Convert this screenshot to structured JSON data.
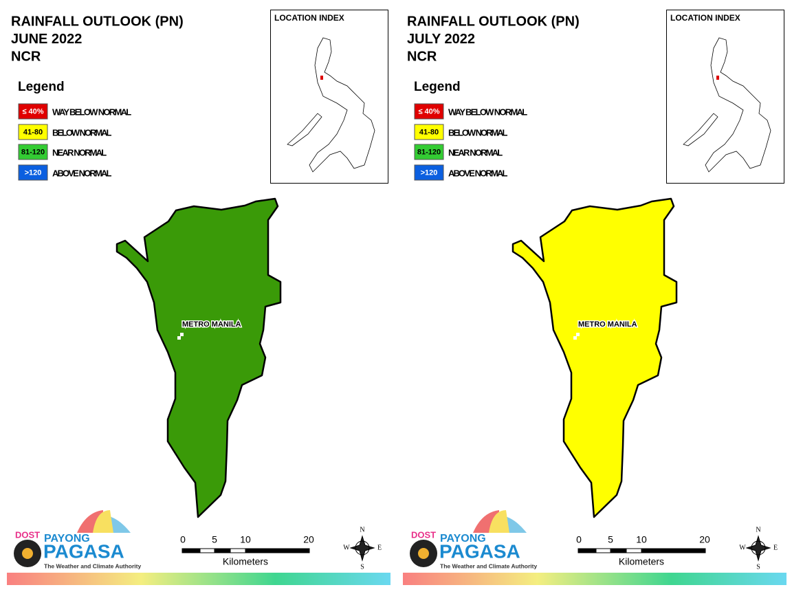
{
  "panels": [
    {
      "title_lines": [
        "RAINFALL OUTLOOK (PN)",
        "JUNE 2022",
        "NCR"
      ],
      "map_color": "#3a9a08",
      "legend_title": "Legend",
      "legend": [
        {
          "swatch": "≤ 40%",
          "label": "WAY BELOW NORMAL",
          "color": "#e00000",
          "text_color": "#ffffff"
        },
        {
          "swatch": "41-80",
          "label": "BELOW NORMAL",
          "color": "#ffff00",
          "text_color": "#000000"
        },
        {
          "swatch": "81-120",
          "label": "NEAR NORMAL",
          "color": "#33cc33",
          "text_color": "#000000"
        },
        {
          "swatch": ">120",
          "label": "ABOVE NORMAL",
          "color": "#0b5fe0",
          "text_color": "#ffffff"
        }
      ],
      "location_index": "LOCATION INDEX",
      "map_label": "METRO MANILA",
      "scale_ticks": [
        "0",
        "5",
        "10",
        "20"
      ],
      "scale_unit": "Kilometers",
      "compass": {
        "n": "N",
        "e": "E",
        "s": "S",
        "w": "W"
      },
      "logo": {
        "dost": "DOST",
        "payong": "PAYONG",
        "pagasa": "PAGASA",
        "tagline": "The Weather and Climate Authority"
      }
    },
    {
      "title_lines": [
        "RAINFALL OUTLOOK (PN)",
        "JULY 2022",
        "NCR"
      ],
      "map_color": "#ffff00",
      "legend_title": "Legend",
      "legend": [
        {
          "swatch": "≤ 40%",
          "label": "WAY BELOW NORMAL",
          "color": "#e00000",
          "text_color": "#ffffff"
        },
        {
          "swatch": "41-80",
          "label": "BELOW NORMAL",
          "color": "#ffff00",
          "text_color": "#000000"
        },
        {
          "swatch": "81-120",
          "label": "NEAR NORMAL",
          "color": "#33cc33",
          "text_color": "#000000"
        },
        {
          "swatch": ">120",
          "label": "ABOVE NORMAL",
          "color": "#0b5fe0",
          "text_color": "#ffffff"
        }
      ],
      "location_index": "LOCATION INDEX",
      "map_label": "METRO MANILA",
      "scale_ticks": [
        "0",
        "5",
        "10",
        "20"
      ],
      "scale_unit": "Kilometers",
      "compass": {
        "n": "N",
        "e": "E",
        "s": "S",
        "w": "W"
      },
      "logo": {
        "dost": "DOST",
        "payong": "PAYONG",
        "pagasa": "PAGASA",
        "tagline": "The Weather and Climate Authority"
      }
    }
  ]
}
